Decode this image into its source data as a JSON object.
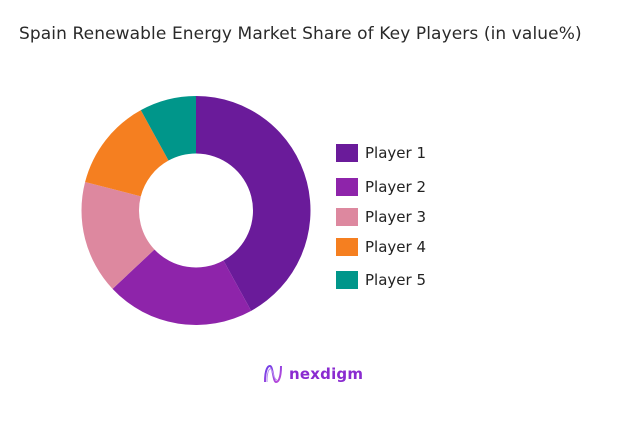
{
  "title": "Spain Renewable Energy Market Share of Key Players (in value%)",
  "chart_data": {
    "type": "pie",
    "variant": "donut",
    "title": "Spain Renewable Energy Market Share of Key Players (in value%)",
    "categories": [
      "Player 1",
      "Player 2",
      "Player 3",
      "Player 4",
      "Player 5"
    ],
    "values": [
      42,
      21,
      16,
      13,
      8
    ],
    "colors": [
      "#6a1b9a",
      "#8e24aa",
      "#dd889f",
      "#f57f20",
      "#00968a"
    ],
    "legend_position": "right",
    "start_angle_deg": 0,
    "direction": "clockwise"
  },
  "legend": {
    "items": [
      {
        "label": "Player 1",
        "color": "#6a1b9a"
      },
      {
        "label": "Player 2",
        "color": "#8e24aa"
      },
      {
        "label": "Player 3",
        "color": "#dd889f"
      },
      {
        "label": "Player 4",
        "color": "#f57f20"
      },
      {
        "label": "Player 5",
        "color": "#00968a"
      }
    ]
  },
  "logo": {
    "text": "nexdigm",
    "color": "#8a2bd0"
  }
}
